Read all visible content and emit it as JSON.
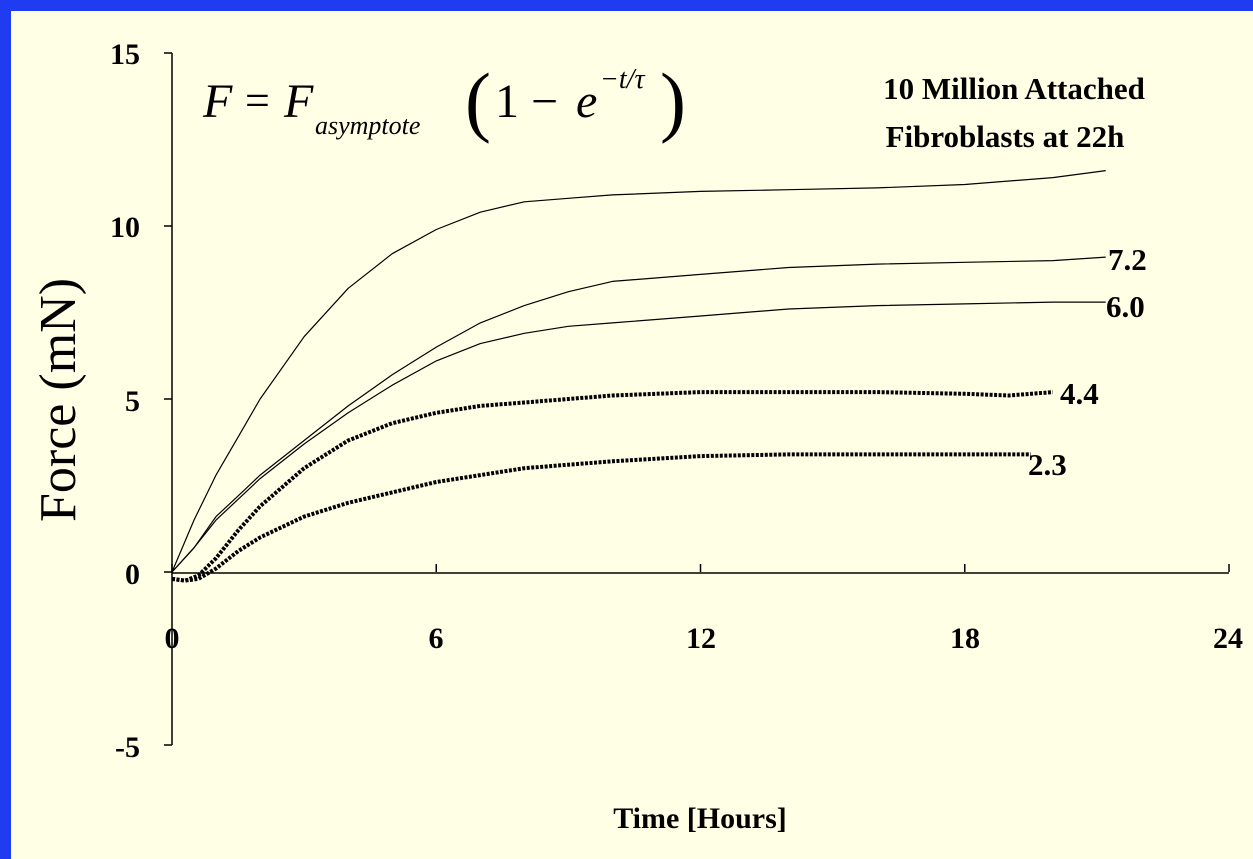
{
  "background_color": "#1f3cf0",
  "panel_color": "#ffffe6",
  "equation": {
    "lhs": "F",
    "equals": "=",
    "base": "F",
    "subscript": "asymptote",
    "open_paren": "(",
    "one_minus": "1 −",
    "e": "e",
    "exponent": "−t/τ",
    "close_paren": ")"
  },
  "annotation": {
    "line1": "10 Million Attached",
    "line2": "Fibroblasts at 22h"
  },
  "chart_data": {
    "type": "line",
    "title": "",
    "xlabel": "Time [Hours]",
    "ylabel": "Force (mN)",
    "xlim": [
      0,
      24
    ],
    "ylim": [
      -5,
      15
    ],
    "xticks": [
      0,
      6,
      12,
      18,
      24
    ],
    "yticks": [
      -5,
      0,
      5,
      10,
      15
    ],
    "series": [
      {
        "label": "",
        "style": "thin",
        "x": [
          0,
          0.5,
          1,
          1.5,
          2,
          3,
          4,
          5,
          6,
          7,
          8,
          9,
          10,
          12,
          14,
          16,
          18,
          20,
          21.2
        ],
        "y": [
          0,
          1.5,
          2.8,
          3.9,
          5.0,
          6.8,
          8.2,
          9.2,
          9.9,
          10.4,
          10.7,
          10.8,
          10.9,
          11.0,
          11.05,
          11.1,
          11.2,
          11.4,
          11.6
        ]
      },
      {
        "label": "7.2",
        "style": "thin",
        "x": [
          0,
          0.5,
          1,
          1.5,
          2,
          3,
          4,
          5,
          6,
          7,
          8,
          9,
          10,
          12,
          14,
          16,
          18,
          20,
          21.2
        ],
        "y": [
          0,
          0.7,
          1.6,
          2.2,
          2.8,
          3.8,
          4.8,
          5.7,
          6.5,
          7.2,
          7.7,
          8.1,
          8.4,
          8.6,
          8.8,
          8.9,
          8.95,
          9.0,
          9.1
        ]
      },
      {
        "label": "6.0",
        "style": "thin",
        "x": [
          0,
          0.5,
          1,
          1.5,
          2,
          3,
          4,
          5,
          6,
          7,
          8,
          9,
          10,
          12,
          14,
          16,
          18,
          20,
          21.2
        ],
        "y": [
          0,
          0.7,
          1.5,
          2.1,
          2.7,
          3.7,
          4.6,
          5.4,
          6.1,
          6.6,
          6.9,
          7.1,
          7.2,
          7.4,
          7.6,
          7.7,
          7.75,
          7.8,
          7.8
        ]
      },
      {
        "label": "4.4",
        "style": "thick",
        "x": [
          0,
          0.3,
          0.6,
          1,
          1.5,
          2,
          3,
          4,
          5,
          6,
          7,
          8,
          9,
          10,
          12,
          14,
          16,
          18,
          19,
          20
        ],
        "y": [
          -0.2,
          -0.25,
          -0.1,
          0.4,
          1.2,
          1.9,
          3.0,
          3.8,
          4.3,
          4.6,
          4.8,
          4.9,
          5.0,
          5.1,
          5.2,
          5.2,
          5.2,
          5.15,
          5.1,
          5.2
        ]
      },
      {
        "label": "2.3",
        "style": "thick",
        "x": [
          0,
          0.3,
          0.6,
          1,
          1.5,
          2,
          3,
          4,
          5,
          6,
          7,
          8,
          9,
          10,
          12,
          14,
          16,
          18,
          19.5
        ],
        "y": [
          -0.2,
          -0.25,
          -0.2,
          0.1,
          0.6,
          1.0,
          1.6,
          2.0,
          2.3,
          2.6,
          2.8,
          3.0,
          3.1,
          3.2,
          3.35,
          3.4,
          3.4,
          3.4,
          3.4
        ]
      }
    ]
  }
}
